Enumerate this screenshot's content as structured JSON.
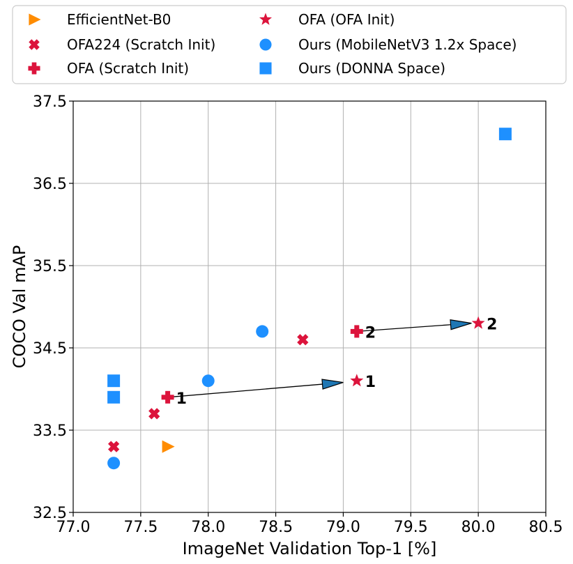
{
  "chart_data": {
    "type": "scatter",
    "xlabel": "ImageNet Validation Top-1 [%]",
    "ylabel": "COCO Val mAP",
    "xlim": [
      77.0,
      80.5
    ],
    "ylim": [
      32.5,
      37.5
    ],
    "xticks": [
      77.0,
      77.5,
      78.0,
      78.5,
      79.0,
      79.5,
      80.0,
      80.5
    ],
    "xtick_labels": [
      "77.0",
      "77.5",
      "78.0",
      "78.5",
      "79.0",
      "79.5",
      "80.0",
      "80.5"
    ],
    "yticks": [
      32.5,
      33.5,
      34.5,
      35.5,
      36.5,
      37.5
    ],
    "ytick_labels": [
      "32.5",
      "33.5",
      "34.5",
      "35.5",
      "36.5",
      "37.5"
    ],
    "grid": true,
    "legend_position": "top, above plot, two columns",
    "series": [
      {
        "name": "EfficientNet-B0",
        "marker": "triangle-right",
        "color": "#ff8c00",
        "points": [
          [
            77.7,
            33.3
          ]
        ]
      },
      {
        "name": "OFA224 (Scratch Init)",
        "marker": "x-filled",
        "color": "#dc143c",
        "points": [
          [
            77.3,
            33.3
          ],
          [
            77.6,
            33.7
          ],
          [
            78.7,
            34.6
          ]
        ]
      },
      {
        "name": "OFA (Scratch Init)",
        "marker": "plus-filled",
        "color": "#dc143c",
        "points": [
          [
            77.7,
            33.9
          ],
          [
            79.1,
            34.7
          ]
        ]
      },
      {
        "name": "OFA (OFA Init)",
        "marker": "star",
        "color": "#dc143c",
        "points": [
          [
            79.1,
            34.1
          ],
          [
            80.0,
            34.8
          ]
        ]
      },
      {
        "name": "Ours (MobileNetV3 1.2x Space)",
        "marker": "circle",
        "color": "#1e90ff",
        "points": [
          [
            77.3,
            33.1
          ],
          [
            78.0,
            34.1
          ],
          [
            78.4,
            34.7
          ]
        ]
      },
      {
        "name": "Ours (DONNA Space)",
        "marker": "square",
        "color": "#1e90ff",
        "points": [
          [
            77.3,
            33.9
          ],
          [
            77.3,
            34.1
          ],
          [
            80.2,
            37.1
          ]
        ]
      }
    ],
    "arrows": [
      {
        "from": [
          77.7,
          33.9
        ],
        "to": [
          79.0,
          34.08
        ]
      },
      {
        "from": [
          79.1,
          34.7
        ],
        "to": [
          79.95,
          34.8
        ]
      }
    ],
    "annotations": [
      {
        "text": "1",
        "x": 77.7,
        "y": 33.9
      },
      {
        "text": "1",
        "x": 79.1,
        "y": 34.1
      },
      {
        "text": "2",
        "x": 79.1,
        "y": 34.7
      },
      {
        "text": "2",
        "x": 80.0,
        "y": 34.8
      }
    ]
  }
}
